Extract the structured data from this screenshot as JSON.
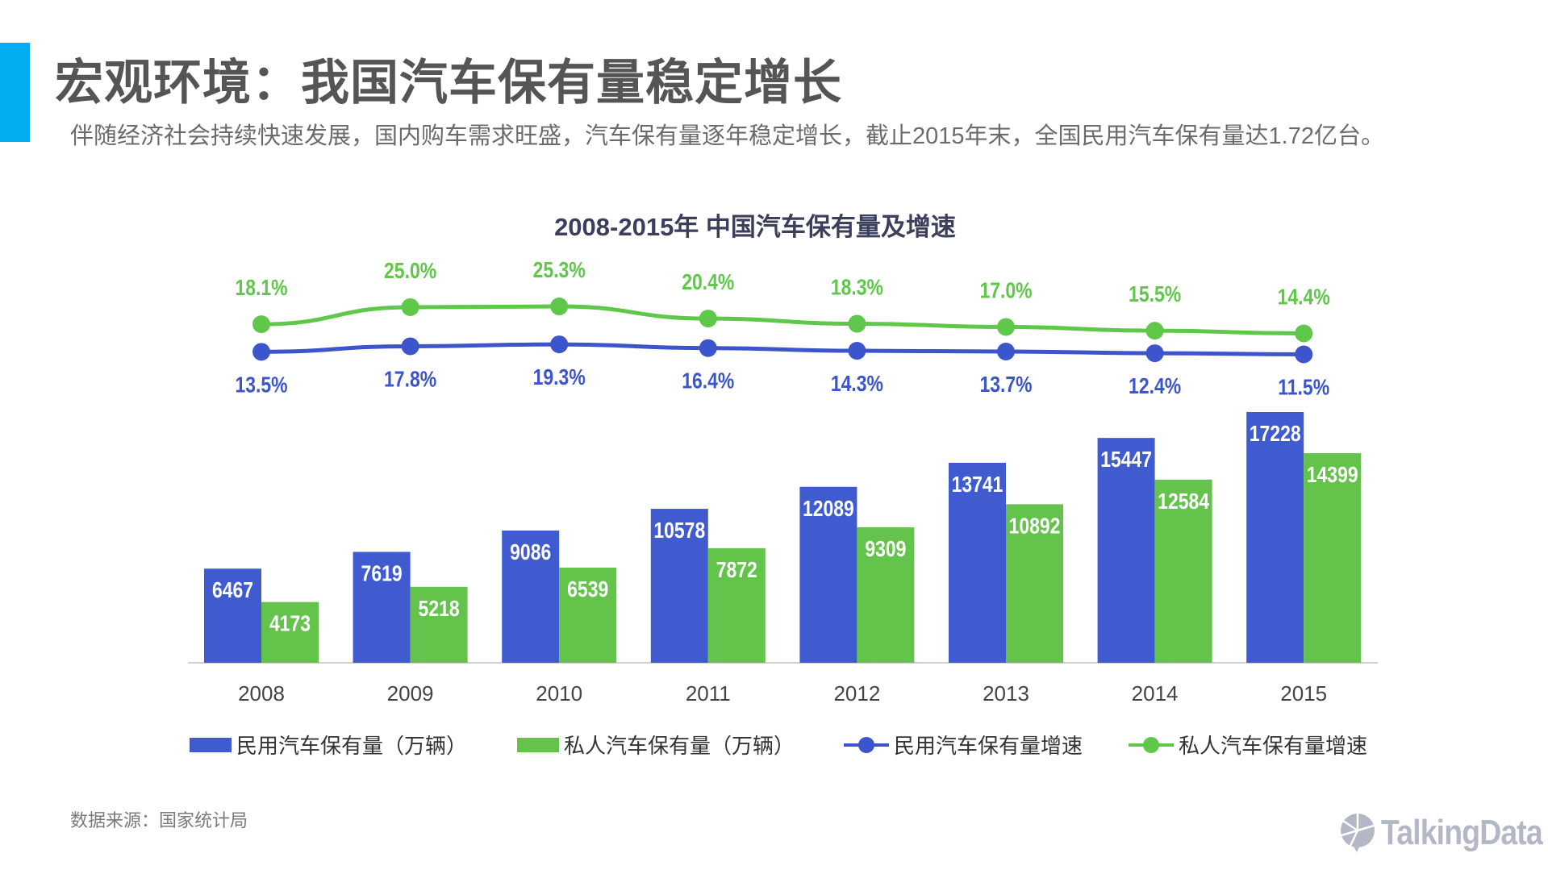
{
  "page": {
    "title": "宏观环境：我国汽车保有量稳定增长",
    "subtitle": "伴随经济社会持续快速发展，国内购车需求旺盛，汽车保有量逐年稳定增长，截止2015年末，全国民用汽车保有量达1.72亿台。",
    "source": "数据来源：国家统计局",
    "logo": "TalkingData",
    "accent_color": "#00aeef"
  },
  "chart_data": {
    "type": "bar+line",
    "title": "2008-2015年 中国汽车保有量及增速",
    "categories": [
      "2008",
      "2009",
      "2010",
      "2011",
      "2012",
      "2013",
      "2014",
      "2015"
    ],
    "bar_series": [
      {
        "name": "民用汽车保有量（万辆）",
        "color": "#3f5bcf",
        "values": [
          6467,
          7619,
          9086,
          10578,
          12089,
          13741,
          15447,
          17228
        ]
      },
      {
        "name": "私人汽车保有量（万辆）",
        "color": "#64c34b",
        "values": [
          4173,
          5218,
          6539,
          7872,
          9309,
          10892,
          12584,
          14399
        ]
      }
    ],
    "line_series": [
      {
        "name": "民用汽车保有量增速",
        "color": "#3d55cc",
        "values": [
          13.5,
          17.8,
          19.3,
          16.4,
          14.3,
          13.7,
          12.4,
          11.5
        ],
        "labels": [
          "13.5%",
          "17.8%",
          "19.3%",
          "16.4%",
          "14.3%",
          "13.7%",
          "12.4%",
          "11.5%"
        ]
      },
      {
        "name": "私人汽车保有量增速",
        "color": "#5fc84a",
        "values": [
          18.1,
          25.0,
          25.3,
          20.4,
          18.3,
          17.0,
          15.5,
          14.4
        ],
        "labels": [
          "18.1%",
          "25.0%",
          "25.3%",
          "20.4%",
          "18.3%",
          "17.0%",
          "15.5%",
          "14.4%"
        ]
      }
    ],
    "legend_position": "bottom",
    "grid": false
  }
}
